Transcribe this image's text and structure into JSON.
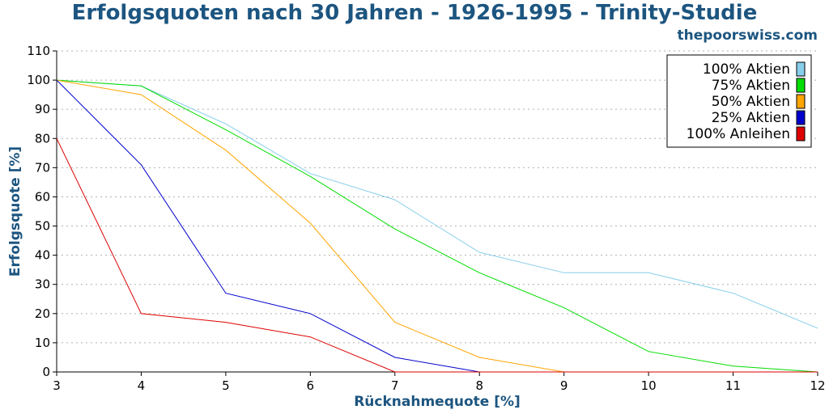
{
  "chart_data": {
    "type": "line",
    "title": "Erfolgsquoten nach 30 Jahren - 1926-1995 - Trinity-Studie",
    "subtitle": "thepoorswiss.com",
    "xlabel": "Rücknahmequote [%]",
    "ylabel": "Erfolgsquote [%]",
    "x": [
      3,
      4,
      5,
      6,
      7,
      8,
      9,
      10,
      11,
      12
    ],
    "xlim": [
      3,
      12
    ],
    "ylim": [
      0,
      110
    ],
    "yticks": [
      0,
      10,
      20,
      30,
      40,
      50,
      60,
      70,
      80,
      90,
      100,
      110
    ],
    "grid": true,
    "legend_position": "top-right",
    "series": [
      {
        "name": "100% Aktien",
        "color": "#87ceeb",
        "values": [
          100,
          98,
          85,
          68,
          59,
          41,
          34,
          34,
          27,
          15
        ]
      },
      {
        "name": "75% Aktien",
        "color": "#00dd00",
        "values": [
          100,
          98,
          83,
          67,
          49,
          34,
          22,
          7,
          2,
          0
        ]
      },
      {
        "name": "50% Aktien",
        "color": "#ffa500",
        "values": [
          100,
          95,
          76,
          51,
          17,
          5,
          0,
          0,
          0,
          0
        ]
      },
      {
        "name": "25% Aktien",
        "color": "#0000cd",
        "values": [
          100,
          71,
          27,
          20,
          5,
          0,
          0,
          0,
          0,
          0
        ]
      },
      {
        "name": "100% Anleihen",
        "color": "#dd0000",
        "values": [
          80,
          20,
          17,
          12,
          0,
          0,
          0,
          0,
          0,
          0
        ]
      }
    ]
  }
}
